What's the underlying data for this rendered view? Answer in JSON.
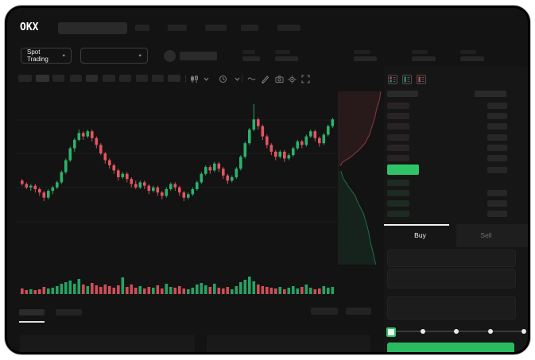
{
  "brand": {
    "logo_text": "OKX"
  },
  "market_selector": {
    "label": "Spot Trading"
  },
  "trade_panel": {
    "buy_label": "Buy",
    "sell_label": "Sell",
    "slider": {
      "steps": 5,
      "active_step": 0
    }
  },
  "icons": {
    "toolbar": [
      "candle-style",
      "chevron-down",
      "interval-clock",
      "chevron-down",
      "wave-indicator",
      "draw-pencil",
      "camera-snapshot",
      "settings-gear",
      "fullscreen-expand"
    ],
    "orderbook_modes": [
      "book-both-sides",
      "book-bids-only",
      "book-asks-only"
    ]
  },
  "colors": {
    "up_green": "#2bb26e",
    "down_red": "#e4555f",
    "accent_green": "#2fc368",
    "buy_button_green": "#2abb61",
    "grid": "#1c1c1c"
  },
  "chart_data": {
    "type": "candlestick",
    "axes_visible": false,
    "grid": "horizontal-faint",
    "price_scale": [
      0,
      100
    ],
    "candles": [
      [
        48,
        49,
        45,
        46
      ],
      [
        46,
        47,
        43,
        44
      ],
      [
        44,
        46,
        42,
        45
      ],
      [
        45,
        46,
        41,
        43
      ],
      [
        43,
        44,
        39,
        41
      ],
      [
        41,
        42,
        36,
        38
      ],
      [
        38,
        43,
        37,
        42
      ],
      [
        42,
        45,
        40,
        44
      ],
      [
        44,
        48,
        43,
        47
      ],
      [
        47,
        54,
        46,
        53
      ],
      [
        53,
        61,
        52,
        60
      ],
      [
        60,
        68,
        59,
        67
      ],
      [
        67,
        73,
        65,
        72
      ],
      [
        72,
        78,
        71,
        76
      ],
      [
        76,
        77,
        72,
        74
      ],
      [
        74,
        78,
        73,
        77
      ],
      [
        77,
        78,
        71,
        73
      ],
      [
        73,
        74,
        67,
        69
      ],
      [
        69,
        70,
        63,
        64
      ],
      [
        64,
        65,
        58,
        60
      ],
      [
        60,
        61,
        55,
        57
      ],
      [
        57,
        58,
        52,
        54
      ],
      [
        54,
        55,
        48,
        50
      ],
      [
        50,
        53,
        49,
        52
      ],
      [
        52,
        53,
        47,
        49
      ],
      [
        49,
        50,
        44,
        46
      ],
      [
        46,
        48,
        43,
        44
      ],
      [
        44,
        48,
        43,
        47
      ],
      [
        47,
        48,
        43,
        45
      ],
      [
        45,
        46,
        40,
        42
      ],
      [
        42,
        45,
        41,
        44
      ],
      [
        44,
        45,
        39,
        41
      ],
      [
        41,
        42,
        37,
        39
      ],
      [
        39,
        44,
        38,
        43
      ],
      [
        43,
        47,
        42,
        46
      ],
      [
        46,
        47,
        42,
        44
      ],
      [
        44,
        45,
        39,
        41
      ],
      [
        41,
        42,
        36,
        38
      ],
      [
        38,
        41,
        37,
        40
      ],
      [
        40,
        44,
        39,
        43
      ],
      [
        43,
        48,
        42,
        47
      ],
      [
        47,
        53,
        46,
        52
      ],
      [
        52,
        57,
        51,
        56
      ],
      [
        56,
        57,
        52,
        54
      ],
      [
        54,
        59,
        53,
        58
      ],
      [
        58,
        59,
        53,
        55
      ],
      [
        55,
        56,
        49,
        51
      ],
      [
        51,
        52,
        46,
        48
      ],
      [
        48,
        51,
        47,
        50
      ],
      [
        50,
        56,
        49,
        55
      ],
      [
        55,
        63,
        54,
        62
      ],
      [
        62,
        71,
        61,
        70
      ],
      [
        70,
        79,
        69,
        78
      ],
      [
        78,
        93,
        77,
        84
      ],
      [
        84,
        85,
        78,
        80
      ],
      [
        80,
        81,
        72,
        74
      ],
      [
        74,
        75,
        67,
        69
      ],
      [
        69,
        70,
        63,
        65
      ],
      [
        65,
        66,
        60,
        62
      ],
      [
        62,
        66,
        61,
        65
      ],
      [
        65,
        66,
        59,
        61
      ],
      [
        61,
        64,
        60,
        63
      ],
      [
        63,
        68,
        62,
        67
      ],
      [
        67,
        72,
        66,
        71
      ],
      [
        71,
        72,
        67,
        69
      ],
      [
        69,
        75,
        68,
        74
      ],
      [
        74,
        78,
        73,
        77
      ],
      [
        77,
        78,
        71,
        73
      ],
      [
        73,
        74,
        68,
        70
      ],
      [
        70,
        76,
        69,
        75
      ],
      [
        75,
        81,
        74,
        80
      ],
      [
        80,
        85,
        79,
        84
      ]
    ],
    "volumes": [
      7,
      5,
      6,
      5,
      6,
      9,
      7,
      8,
      10,
      13,
      15,
      17,
      13,
      19,
      12,
      10,
      14,
      11,
      9,
      12,
      10,
      8,
      11,
      21,
      9,
      12,
      8,
      10,
      7,
      9,
      8,
      11,
      7,
      13,
      9,
      8,
      10,
      7,
      6,
      8,
      12,
      14,
      11,
      9,
      13,
      8,
      7,
      9,
      6,
      10,
      15,
      18,
      22,
      16,
      12,
      10,
      9,
      8,
      7,
      9,
      6,
      8,
      10,
      7,
      9,
      12,
      8,
      6,
      7,
      10,
      8,
      9
    ],
    "depth": {
      "asks": [
        [
          0.93,
          0.0
        ],
        [
          0.9,
          0.05
        ],
        [
          0.84,
          0.1
        ],
        [
          0.8,
          0.15
        ],
        [
          0.74,
          0.2
        ],
        [
          0.68,
          0.25
        ],
        [
          0.58,
          0.3
        ],
        [
          0.44,
          0.34
        ],
        [
          0.26,
          0.38
        ],
        [
          0.08,
          0.41
        ],
        [
          0.04,
          0.43
        ]
      ],
      "bids": [
        [
          0.05,
          0.46
        ],
        [
          0.1,
          0.5
        ],
        [
          0.22,
          0.55
        ],
        [
          0.36,
          0.6
        ],
        [
          0.44,
          0.65
        ],
        [
          0.54,
          0.7
        ],
        [
          0.6,
          0.75
        ],
        [
          0.66,
          0.81
        ],
        [
          0.7,
          0.87
        ],
        [
          0.76,
          0.93
        ],
        [
          0.8,
          0.98
        ],
        [
          0.82,
          1.0
        ]
      ]
    }
  },
  "orderbook": {
    "ask_rows": [
      true,
      true,
      true,
      true,
      true,
      true
    ],
    "price_row_has_amount": true,
    "bid_rows": [
      false,
      true,
      true,
      true
    ]
  }
}
